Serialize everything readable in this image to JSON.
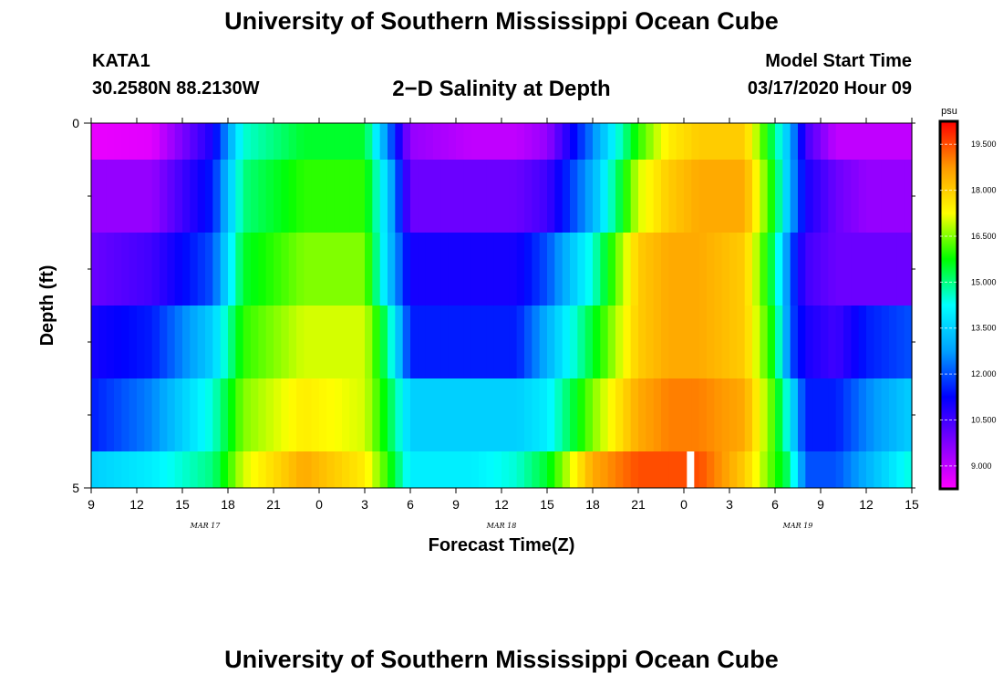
{
  "header": {
    "title": "University of Southern Mississippi Ocean Cube",
    "station_id": "KATA1",
    "station_coords": "30.2580N 88.2130W",
    "plot_title": "2−D Salinity at Depth",
    "model_start_label": "Model Start Time",
    "model_start_value": "03/17/2020 Hour 09"
  },
  "footer": {
    "title": "University of Southern Mississippi Ocean Cube"
  },
  "chart_data": {
    "type": "heatmap",
    "title": "2−D Salinity at Depth",
    "xlabel": "Forecast Time(Z)",
    "ylabel": "Depth (ft)",
    "x_tick_labels": [
      "9",
      "12",
      "15",
      "18",
      "21",
      "0",
      "3",
      "6",
      "9",
      "12",
      "15",
      "18",
      "21",
      "0",
      "3",
      "6",
      "9",
      "12",
      "15"
    ],
    "x_range_hours": [
      0,
      54
    ],
    "date_labels": [
      {
        "text": "MAR 17",
        "hour": 7.5
      },
      {
        "text": "MAR 18",
        "hour": 27
      },
      {
        "text": "MAR 19",
        "hour": 46.5
      }
    ],
    "y_tick_labels": [
      "0",
      "5"
    ],
    "ylim": [
      0,
      5
    ],
    "depth_layers": 6,
    "colorbar": {
      "unit": "psu",
      "min": 8.25,
      "max": 20.25,
      "tick_labels": [
        "19.500",
        "18.000",
        "16.500",
        "15.000",
        "13.500",
        "12.000",
        "10.500",
        "9.000"
      ],
      "tick_values": [
        19.5,
        18.0,
        16.5,
        15.0,
        13.5,
        12.0,
        10.5,
        9.0
      ],
      "colors": [
        "#ff00ff",
        "#8000ff",
        "#0000ff",
        "#00a0ff",
        "#00ffff",
        "#00ff00",
        "#ffff00",
        "#ff9900",
        "#ff0000"
      ]
    },
    "salinity_psu": {
      "knot_hours": [
        0,
        4,
        8,
        10,
        14,
        18,
        19.5,
        21,
        25,
        28,
        30,
        33,
        36,
        38,
        40,
        43,
        45,
        46,
        47,
        49,
        51,
        54
      ],
      "rows": [
        [
          8.5,
          8.6,
          11.0,
          14.5,
          15.5,
          15.5,
          12.5,
          9.5,
          9.0,
          9.0,
          9.5,
          12.5,
          16.0,
          17.5,
          18.0,
          18.0,
          15.0,
          13.0,
          10.5,
          9.0,
          9.0,
          9.0
        ],
        [
          9.5,
          9.5,
          11.5,
          15.0,
          16.0,
          16.0,
          13.5,
          10.0,
          10.0,
          10.0,
          10.5,
          13.0,
          17.0,
          18.0,
          18.5,
          18.5,
          15.5,
          13.0,
          11.0,
          10.0,
          9.5,
          9.5
        ],
        [
          10.0,
          10.5,
          12.0,
          15.5,
          16.5,
          16.5,
          13.5,
          11.0,
          11.0,
          11.0,
          12.0,
          14.5,
          18.0,
          18.5,
          18.5,
          18.0,
          15.0,
          12.0,
          10.5,
          10.0,
          10.0,
          10.0
        ],
        [
          11.0,
          11.5,
          13.5,
          16.0,
          17.0,
          17.0,
          15.0,
          11.5,
          11.5,
          11.5,
          13.0,
          15.5,
          18.0,
          18.5,
          18.5,
          18.0,
          15.5,
          12.0,
          11.0,
          10.5,
          11.5,
          12.0
        ],
        [
          11.5,
          12.5,
          14.5,
          16.5,
          17.5,
          17.0,
          15.5,
          13.5,
          13.5,
          13.5,
          14.0,
          16.5,
          18.5,
          19.0,
          19.0,
          18.5,
          16.0,
          14.0,
          11.5,
          11.5,
          12.5,
          13.5
        ],
        [
          13.5,
          14.0,
          15.0,
          17.0,
          18.5,
          17.5,
          16.0,
          14.0,
          14.0,
          14.5,
          15.5,
          18.5,
          19.5,
          19.5,
          19.5,
          18.0,
          16.0,
          15.0,
          12.0,
          12.0,
          13.0,
          14.5
        ]
      ]
    }
  }
}
